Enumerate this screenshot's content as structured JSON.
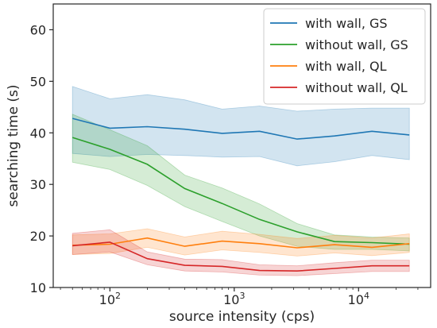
{
  "chart_data": {
    "type": "line",
    "xlabel": "source intensity (cps)",
    "ylabel": "searching time (s)",
    "xscale": "log",
    "xlim": [
      35,
      38000
    ],
    "ylim": [
      10,
      65
    ],
    "yticks": [
      10,
      20,
      30,
      40,
      50,
      60
    ],
    "xticks": [
      {
        "value": 100,
        "base": "10",
        "exp": "2"
      },
      {
        "value": 1000,
        "base": "10",
        "exp": "3"
      },
      {
        "value": 10000,
        "base": "10",
        "exp": "4"
      }
    ],
    "grid": false,
    "legend": "top-right",
    "x": [
      50,
      100,
      200,
      400,
      800,
      1600,
      3200,
      6400,
      12800,
      25600
    ],
    "series": [
      {
        "name": "with wall, GS",
        "color": "#1f77b4",
        "values": [
          42.8,
          40.9,
          41.2,
          40.7,
          39.9,
          40.3,
          38.8,
          39.4,
          40.3,
          39.6
        ],
        "lower": [
          36.0,
          35.4,
          35.8,
          35.6,
          35.3,
          35.4,
          33.6,
          34.4,
          35.6,
          34.8
        ],
        "upper": [
          49.0,
          46.6,
          47.4,
          46.4,
          44.6,
          45.2,
          44.2,
          44.6,
          44.8,
          44.8
        ]
      },
      {
        "name": "without wall, GS",
        "color": "#2ca02c",
        "values": [
          39.1,
          36.8,
          33.9,
          29.2,
          26.3,
          23.2,
          20.8,
          18.9,
          18.7,
          18.4
        ],
        "lower": [
          34.3,
          32.9,
          29.8,
          25.7,
          22.8,
          20.0,
          18.0,
          17.4,
          17.4,
          17.1
        ],
        "upper": [
          43.6,
          40.6,
          37.5,
          31.8,
          29.3,
          26.2,
          22.4,
          20.2,
          19.8,
          19.6
        ]
      },
      {
        "name": "with wall, QL",
        "color": "#ff7f0e",
        "values": [
          18.2,
          18.4,
          19.6,
          18.0,
          19.0,
          18.5,
          17.7,
          18.3,
          17.8,
          18.5
        ],
        "lower": [
          16.4,
          16.6,
          17.8,
          16.3,
          17.3,
          16.8,
          16.1,
          16.7,
          16.2,
          16.8
        ],
        "upper": [
          20.2,
          20.4,
          21.4,
          19.8,
          20.9,
          20.3,
          19.5,
          20.1,
          19.6,
          20.4
        ]
      },
      {
        "name": "without wall, QL",
        "color": "#d62728",
        "values": [
          18.1,
          18.8,
          15.6,
          14.3,
          14.1,
          13.3,
          13.2,
          13.7,
          14.2,
          14.2
        ],
        "lower": [
          16.4,
          16.9,
          14.4,
          13.2,
          13.0,
          12.4,
          12.3,
          12.7,
          13.1,
          13.1
        ],
        "upper": [
          20.5,
          21.2,
          16.9,
          15.5,
          15.4,
          14.4,
          14.2,
          14.8,
          15.3,
          15.3
        ]
      }
    ]
  }
}
